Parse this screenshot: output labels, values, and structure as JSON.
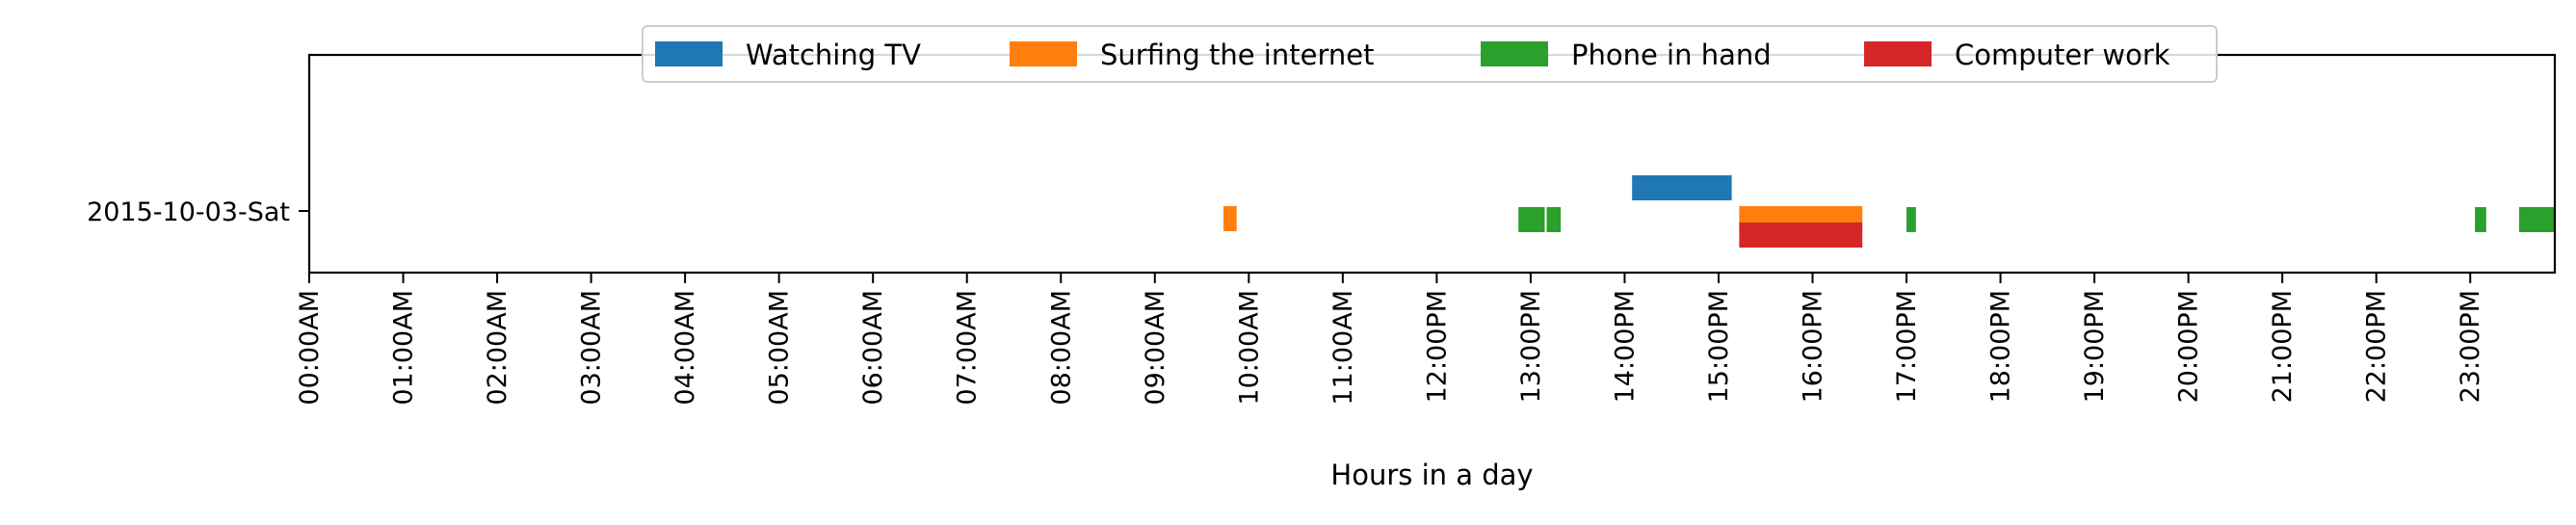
{
  "chart_data": {
    "type": "timeline",
    "title": "",
    "xlabel": "Hours in a day",
    "ylabel": "",
    "xlim": [
      0,
      23.9
    ],
    "x_ticks": [
      "00:00AM",
      "01:00AM",
      "02:00AM",
      "03:00AM",
      "04:00AM",
      "05:00AM",
      "06:00AM",
      "07:00AM",
      "08:00AM",
      "09:00AM",
      "10:00AM",
      "11:00AM",
      "12:00PM",
      "13:00PM",
      "14:00PM",
      "15:00PM",
      "16:00PM",
      "17:00PM",
      "18:00PM",
      "19:00PM",
      "20:00PM",
      "21:00PM",
      "22:00PM",
      "23:00PM"
    ],
    "categories": [
      "2015-10-03-Sat"
    ],
    "legend": {
      "placement": "top-center",
      "ncol": 4
    },
    "series": [
      {
        "name": "Watching TV",
        "color": "#1f77b4",
        "intervals": [
          [
            14.08,
            15.14
          ]
        ]
      },
      {
        "name": "Surfing the internet",
        "color": "#ff7f0e",
        "intervals": [
          [
            9.73,
            9.87
          ],
          [
            15.22,
            16.53
          ]
        ]
      },
      {
        "name": "Phone in hand",
        "color": "#2ca02c",
        "intervals": [
          [
            12.87,
            13.15
          ],
          [
            13.17,
            13.32
          ],
          [
            17.0,
            17.1
          ],
          [
            23.05,
            23.17
          ],
          [
            23.52,
            23.9
          ]
        ]
      },
      {
        "name": "Computer work",
        "color": "#d62728",
        "intervals": [
          [
            15.22,
            16.53
          ]
        ]
      }
    ]
  }
}
